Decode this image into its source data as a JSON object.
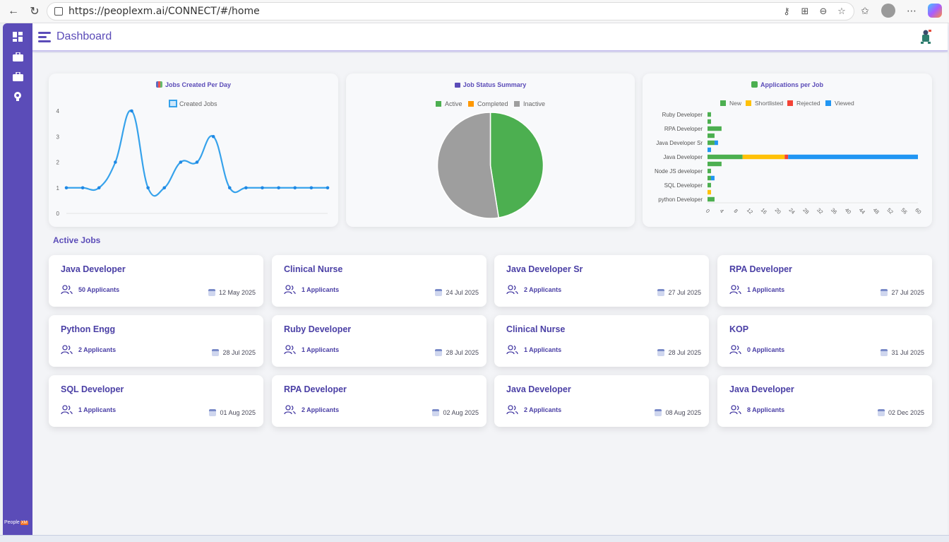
{
  "browser": {
    "url": "https://peoplexm.ai/CONNECT/#/home"
  },
  "header": {
    "title": "Dashboard"
  },
  "sidebar": {
    "logo_text": "People",
    "logo_box": "XM"
  },
  "charts": {
    "jobs_per_day": {
      "title": "Jobs Created Per Day",
      "legend": "Created Jobs"
    },
    "job_status": {
      "title": "Job Status Summary",
      "legend": [
        "Active",
        "Completed",
        "Inactive"
      ]
    },
    "apps_per_job": {
      "title": "Applications per Job",
      "legend": [
        "New",
        "Shortlisted",
        "Rejected",
        "Viewed"
      ]
    }
  },
  "chart_data": [
    {
      "type": "line",
      "title": "Jobs Created Per Day",
      "series": [
        {
          "name": "Created Jobs",
          "values": [
            1,
            1,
            1,
            2,
            4,
            1,
            1,
            2,
            2,
            3,
            1,
            1,
            1,
            1,
            1,
            1,
            1
          ]
        }
      ],
      "ylim": [
        0,
        4
      ],
      "yticks": [
        "0",
        "1",
        "2",
        "3",
        "4"
      ],
      "color": "#36a2eb"
    },
    {
      "type": "pie",
      "title": "Job Status Summary",
      "categories": [
        "Active",
        "Completed",
        "Inactive"
      ],
      "values": [
        47.5,
        0,
        52.5
      ],
      "colors": [
        "#4caf50",
        "#ff9800",
        "#9e9e9e"
      ]
    },
    {
      "type": "bar",
      "orientation": "horizontal",
      "stacked": true,
      "title": "Applications per Job",
      "categories": [
        "Ruby Developer",
        "",
        "RPA Developer",
        "",
        "Java Developer Sr",
        "",
        "Java Developer",
        "",
        "Node JS developer",
        "",
        "SQL Developer",
        "",
        "python Developer"
      ],
      "series": [
        {
          "name": "New",
          "color": "#4caf50",
          "values": [
            1,
            1,
            4,
            2,
            2,
            0,
            10,
            4,
            1,
            1,
            1,
            0,
            2
          ]
        },
        {
          "name": "Shortlisted",
          "color": "#ffc107",
          "values": [
            0,
            0,
            0,
            0,
            0,
            0,
            12,
            0,
            0,
            0,
            0,
            1,
            0
          ]
        },
        {
          "name": "Rejected",
          "color": "#f44336",
          "values": [
            0,
            0,
            0,
            0,
            0,
            0,
            1,
            0,
            0,
            0,
            0,
            0,
            0
          ]
        },
        {
          "name": "Viewed",
          "color": "#2196f3",
          "values": [
            0,
            0,
            0,
            0,
            1,
            1,
            37,
            0,
            0,
            1,
            0,
            0,
            0
          ]
        }
      ],
      "xlim": [
        0,
        60
      ],
      "xticks": [
        "0",
        "4",
        "8",
        "12",
        "16",
        "20",
        "24",
        "28",
        "32",
        "36",
        "40",
        "44",
        "48",
        "52",
        "56",
        "60"
      ]
    }
  ],
  "active_jobs": {
    "title": "Active Jobs",
    "items": [
      {
        "title": "Java Developer",
        "applicants": "50 Applicants",
        "date": "12 May 2025"
      },
      {
        "title": "Clinical Nurse",
        "applicants": "1 Applicants",
        "date": "24 Jul 2025"
      },
      {
        "title": "Java Developer Sr",
        "applicants": "2 Applicants",
        "date": "27 Jul 2025"
      },
      {
        "title": "RPA Developer",
        "applicants": "1 Applicants",
        "date": "27 Jul 2025"
      },
      {
        "title": "Python Engg",
        "applicants": "2 Applicants",
        "date": "28 Jul 2025"
      },
      {
        "title": "Ruby Developer",
        "applicants": "1 Applicants",
        "date": "28 Jul 2025"
      },
      {
        "title": "Clinical Nurse",
        "applicants": "1 Applicants",
        "date": "28 Jul 2025"
      },
      {
        "title": "KOP",
        "applicants": "0 Applicants",
        "date": "31 Jul 2025"
      },
      {
        "title": "SQL Developer",
        "applicants": "1 Applicants",
        "date": "01 Aug 2025"
      },
      {
        "title": "RPA Developer",
        "applicants": "2 Applicants",
        "date": "02 Aug 2025"
      },
      {
        "title": "Java Developer",
        "applicants": "2 Applicants",
        "date": "08 Aug 2025"
      },
      {
        "title": "Java Developer",
        "applicants": "8 Applicants",
        "date": "02 Dec 2025"
      }
    ]
  }
}
